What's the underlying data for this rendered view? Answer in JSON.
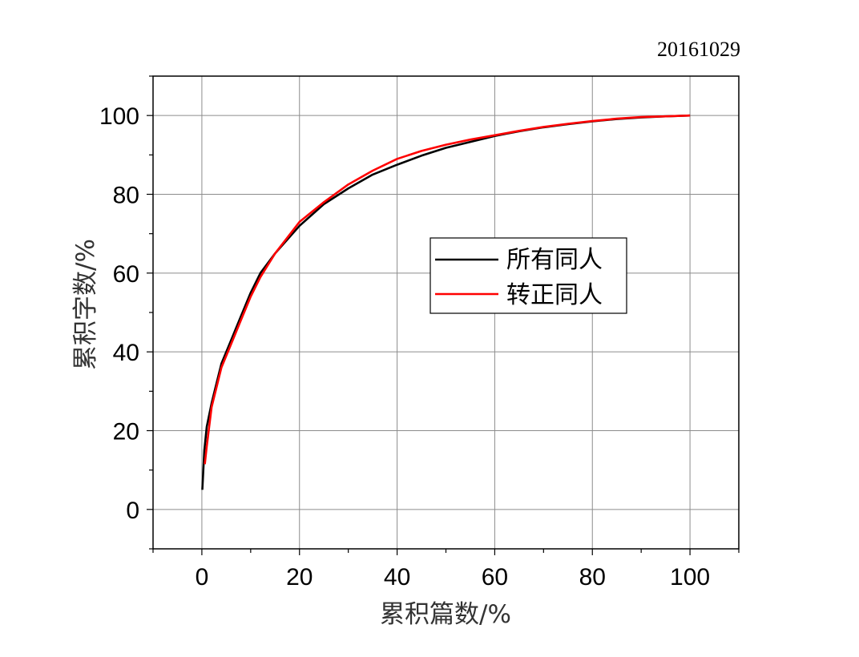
{
  "stamp": "20161029",
  "chart_data": {
    "type": "line",
    "title": "",
    "xlabel": "累积篇数/%",
    "ylabel": "累积字数/%",
    "xlim": [
      -10,
      110
    ],
    "ylim": [
      -10,
      110
    ],
    "xticks": [
      0,
      20,
      40,
      60,
      80,
      100
    ],
    "yticks": [
      0,
      20,
      40,
      60,
      80,
      100
    ],
    "grid": true,
    "legend_position": "center-right",
    "series": [
      {
        "name": "所有同人",
        "color": "#000000",
        "x": [
          0.1,
          0.5,
          1,
          2,
          3,
          4,
          6,
          8,
          10,
          12,
          15,
          20,
          25,
          30,
          35,
          40,
          45,
          50,
          55,
          60,
          65,
          70,
          75,
          80,
          85,
          90,
          95,
          100
        ],
        "y": [
          5,
          15,
          21,
          27,
          32,
          37,
          43,
          49,
          55,
          60,
          65,
          72,
          77.5,
          81.5,
          85,
          87.5,
          89.8,
          91.8,
          93.3,
          94.8,
          96,
          97,
          97.8,
          98.5,
          99.1,
          99.5,
          99.8,
          100
        ]
      },
      {
        "name": "转正同人",
        "color": "#ff0000",
        "x": [
          0.6,
          1,
          2,
          3,
          4,
          6,
          8,
          10,
          12,
          15,
          20,
          25,
          30,
          35,
          40,
          45,
          50,
          55,
          60,
          65,
          70,
          75,
          80,
          85,
          90,
          95,
          100
        ],
        "y": [
          11.5,
          16,
          26,
          31,
          36,
          42,
          48,
          54,
          59,
          65,
          73,
          78,
          82.5,
          86,
          89,
          91,
          92.6,
          93.9,
          95,
          96.1,
          97.1,
          97.9,
          98.6,
          99.2,
          99.6,
          99.8,
          100
        ]
      }
    ]
  }
}
